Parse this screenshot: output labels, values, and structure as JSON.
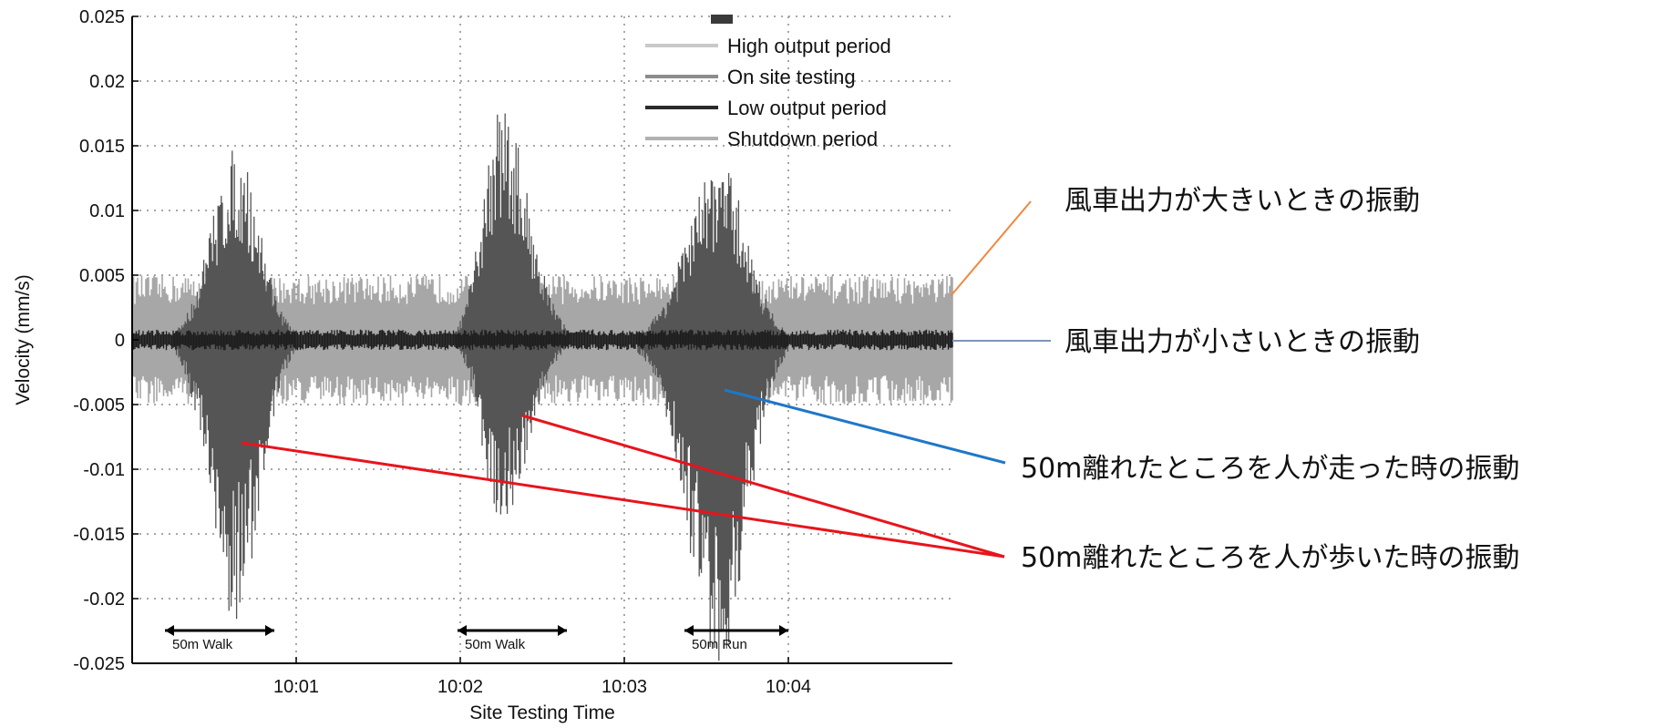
{
  "chart_data": {
    "type": "line",
    "xlabel": "Site Testing Time",
    "ylabel": "Velocity (mm/s)",
    "ylim": [
      -0.025,
      0.025
    ],
    "xlim": [
      "10:00:00",
      "10:05:00"
    ],
    "yticks": [
      {
        "value": 0.025,
        "label": "0.025"
      },
      {
        "value": 0.02,
        "label": "0.02"
      },
      {
        "value": 0.015,
        "label": "0.015"
      },
      {
        "value": 0.01,
        "label": "0.01"
      },
      {
        "value": 0.005,
        "label": "0.005"
      },
      {
        "value": 0,
        "label": "0"
      },
      {
        "value": -0.005,
        "label": "-0.005"
      },
      {
        "value": -0.01,
        "label": "-0.01"
      },
      {
        "value": -0.015,
        "label": "-0.015"
      },
      {
        "value": -0.02,
        "label": "-0.02"
      },
      {
        "value": -0.025,
        "label": "-0.025"
      }
    ],
    "xticks": [
      {
        "time": "10:01:00",
        "label": "10:01"
      },
      {
        "time": "10:02:00",
        "label": "10:02"
      },
      {
        "time": "10:03:00",
        "label": "10:03"
      },
      {
        "time": "10:04:00",
        "label": "10:04"
      }
    ],
    "grid": true,
    "legend_position": "top-right",
    "legend": [
      {
        "name": "High output period",
        "color": "#c9c9c9"
      },
      {
        "name": "On site testing",
        "color": "#8c8c8c"
      },
      {
        "name": "Low output period",
        "color": "#2a2a2a"
      },
      {
        "name": "Shutdown period",
        "color": "#b0b0b0"
      }
    ],
    "series": [
      {
        "name": "High output period",
        "color": "#a7a7a7",
        "envelope_max": 0.005,
        "envelope_min": -0.005
      },
      {
        "name": "Low output period",
        "color": "#1e1e1e",
        "envelope_max": 0.0008,
        "envelope_min": -0.0008
      },
      {
        "name": "On site testing",
        "color": "#555555",
        "events": [
          {
            "start": "10:00:15",
            "end": "10:01:00",
            "peak_time": "10:00:38",
            "max": 0.0148,
            "min": -0.022
          },
          {
            "start": "10:01:58",
            "end": "10:02:40",
            "peak_time": "10:02:15",
            "max": 0.0183,
            "min": -0.0142
          },
          {
            "start": "10:03:05",
            "end": "10:04:00",
            "peak_time": "10:03:35",
            "max": 0.0138,
            "min": -0.025
          }
        ]
      }
    ],
    "ranges": [
      {
        "label": "50m Walk",
        "start": "10:00:12",
        "end": "10:00:52"
      },
      {
        "label": "50m Walk",
        "start": "10:01:59",
        "end": "10:02:39"
      },
      {
        "label": "50m Run",
        "start": "10:03:22",
        "end": "10:04:00"
      }
    ]
  },
  "annotations": [
    {
      "text": "風車出力が大きいときの振動",
      "color": "#f0883e"
    },
    {
      "text": "風車出力が小さいときの振動",
      "color": "#7f94b8"
    },
    {
      "text": "50m離れたところを人が走った時の振動",
      "color": "#1f77c8"
    },
    {
      "text": "50m離れたところを人が歩いた時の振動",
      "color": "#e8141c"
    }
  ]
}
